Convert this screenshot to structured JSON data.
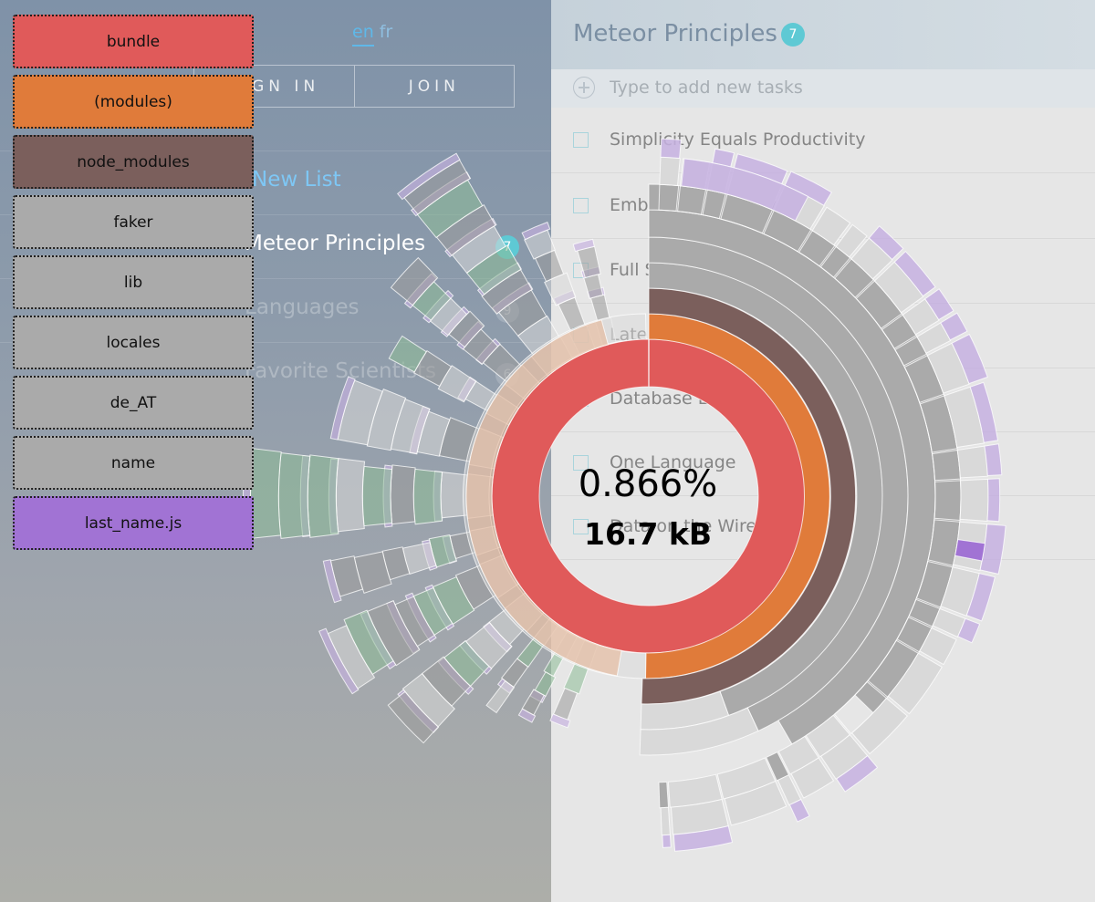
{
  "app": {
    "lang_en": "en",
    "lang_fr": "fr",
    "sign_in": "SIGN IN",
    "join": "JOIN",
    "new_list": "New List",
    "lists": [
      {
        "label": "Meteor Principles",
        "count": "7"
      },
      {
        "label": "Languages",
        "count": "9"
      },
      {
        "label": "Favorite Scientists",
        "count": "6"
      }
    ],
    "list_title": "Meteor Principles",
    "list_count": "7",
    "new_task_placeholder": "Type to add new tasks",
    "tasks": [
      "Simplicity Equals Productivity",
      "Embrace the Ecosystem",
      "Full Stack Reactivity",
      "Latency Compensation",
      "Database Everywhere",
      "One Language",
      "Data on the Wire"
    ]
  },
  "breadcrumb": [
    {
      "label": "bundle",
      "color": "#e05a5a"
    },
    {
      "label": "(modules)",
      "color": "#e07b3a"
    },
    {
      "label": "node_modules",
      "color": "#7b5f5c"
    },
    {
      "label": "faker",
      "color": "#aaaaaa"
    },
    {
      "label": "lib",
      "color": "#aaaaaa"
    },
    {
      "label": "locales",
      "color": "#aaaaaa"
    },
    {
      "label": "de_AT",
      "color": "#aaaaaa"
    },
    {
      "label": "name",
      "color": "#aaaaaa"
    },
    {
      "label": "last_name.js",
      "color": "#a173d4"
    }
  ],
  "sunburst": {
    "percentage": "0.866%",
    "size": "16.7 kB",
    "colors": {
      "bundle": "#e05a5a",
      "modules": "#e07b3a",
      "node_modules": "#7b5f5c",
      "selected": "#aaaaaa",
      "unselected": "#d9d9d9",
      "file_js": "#c6b0e0",
      "file_selected": "#a173d4",
      "package_green": "#8dbb96"
    }
  }
}
